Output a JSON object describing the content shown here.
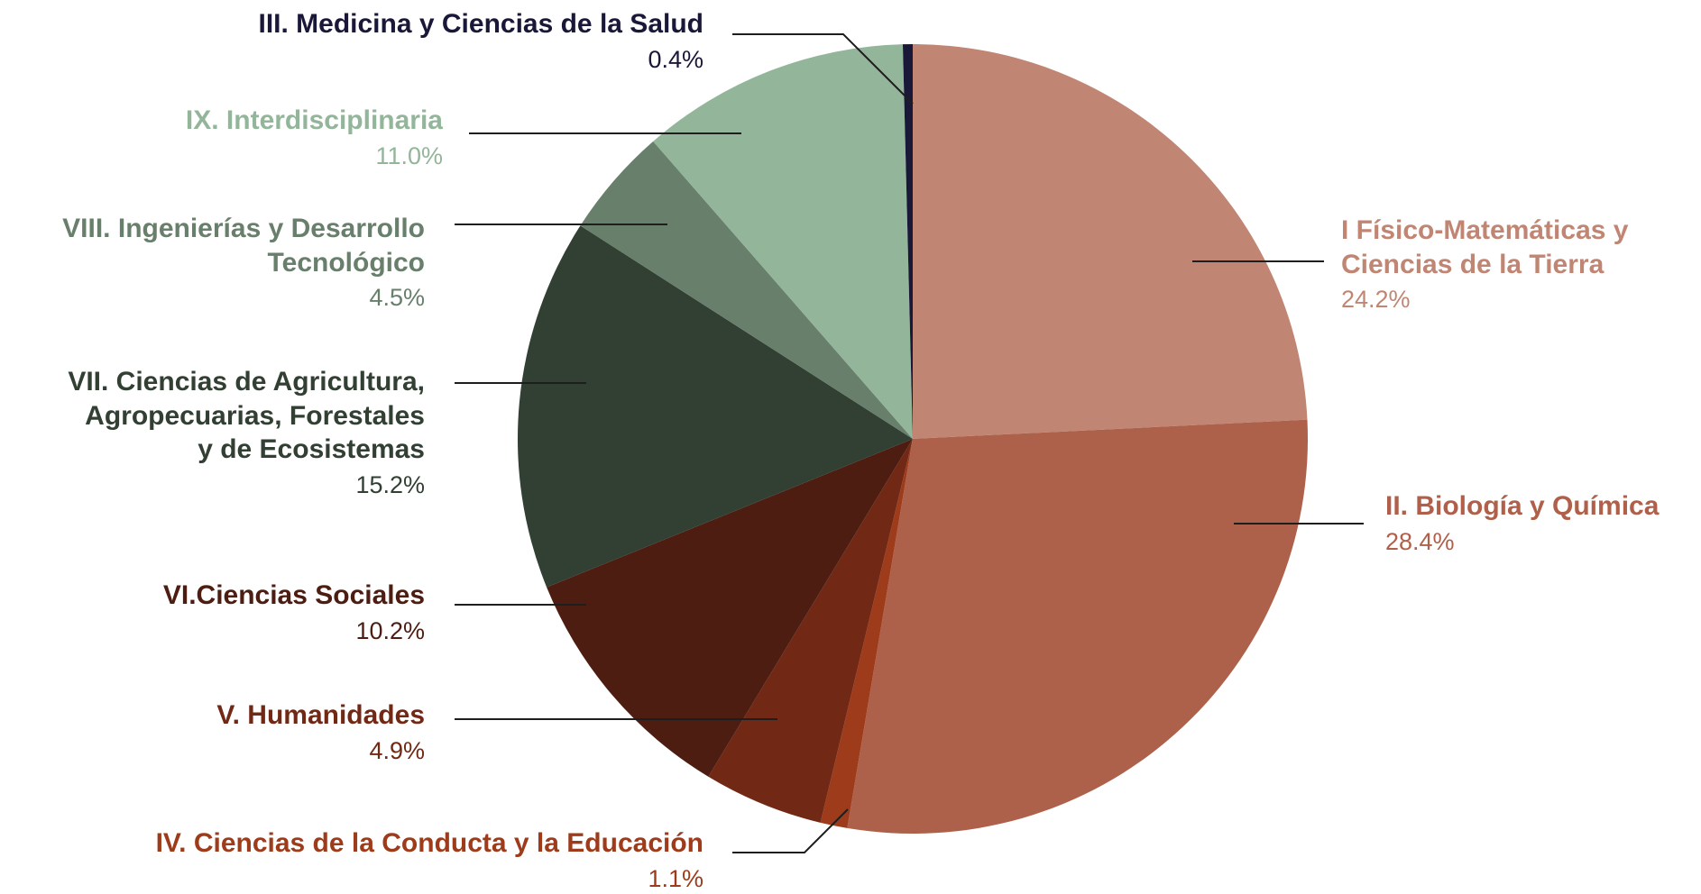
{
  "chart_data": {
    "type": "pie",
    "series": [
      {
        "id": "i",
        "name": "I Físico-Matemáticas y Ciencias de la Tierra",
        "value": 24.2,
        "value_label": "24.2%",
        "color": "#c08673",
        "label_color": "#c08673"
      },
      {
        "id": "ii",
        "name": "II. Biología y Química",
        "value": 28.4,
        "value_label": "28.4%",
        "color": "#ad614a",
        "label_color": "#b0604a"
      },
      {
        "id": "iv",
        "name": "IV. Ciencias de la Conducta y la Educación",
        "value": 1.1,
        "value_label": "1.1%",
        "color": "#9e3b1b",
        "label_color": "#9e3b1b"
      },
      {
        "id": "v",
        "name": "V. Humanidades",
        "value": 4.9,
        "value_label": "4.9%",
        "color": "#712815",
        "label_color": "#712815"
      },
      {
        "id": "vi",
        "name": "VI.Ciencias Sociales",
        "value": 10.2,
        "value_label": "10.2%",
        "color": "#4c1d10",
        "label_color": "#4c1d10"
      },
      {
        "id": "vii",
        "name": "VII. Ciencias de Agricultura, Agropecuarias, Forestales y de Ecosistemas",
        "value": 15.2,
        "value_label": "15.2%",
        "color": "#323f33",
        "label_color": "#323f33"
      },
      {
        "id": "viii",
        "name": "VIII. Ingenierías y Desarrollo Tecnológico",
        "value": 4.5,
        "value_label": "4.5%",
        "color": "#677f6b",
        "label_color": "#677f6b"
      },
      {
        "id": "ix",
        "name": "IX. Interdisciplinaria",
        "value": 11.0,
        "value_label": "11.0%",
        "color": "#93b59a",
        "label_color": "#93b59a"
      },
      {
        "id": "iii",
        "name": "III. Medicina y Ciencias de la Salud",
        "value": 0.4,
        "value_label": "0.4%",
        "color": "#1a1838",
        "label_color": "#1a1838"
      }
    ],
    "start": "12 o'clock",
    "direction": "clockwise"
  },
  "labels": {
    "iii": {
      "lines": [
        "III. Medicina y Ciencias de la Salud"
      ],
      "pct": "0.4%"
    },
    "ix": {
      "lines": [
        "IX. Interdisciplinaria"
      ],
      "pct": "11.0%"
    },
    "viii": {
      "lines": [
        "VIII. Ingenierías y Desarrollo",
        "Tecnológico"
      ],
      "pct": "4.5%"
    },
    "vii": {
      "lines": [
        "VII. Ciencias de Agricultura,",
        "Agropecuarias, Forestales",
        "y de Ecosistemas"
      ],
      "pct": "15.2%"
    },
    "vi": {
      "lines": [
        "VI.Ciencias Sociales"
      ],
      "pct": "10.2%"
    },
    "v": {
      "lines": [
        "V. Humanidades"
      ],
      "pct": "4.9%"
    },
    "iv": {
      "lines": [
        "IV. Ciencias de la Conducta y la Educación"
      ],
      "pct": "1.1%"
    },
    "i": {
      "lines": [
        "I Físico-Matemáticas y",
        "Ciencias de la Tierra"
      ],
      "pct": "24.2%"
    },
    "ii": {
      "lines": [
        "II. Biología y Química"
      ],
      "pct": "28.4%"
    }
  }
}
